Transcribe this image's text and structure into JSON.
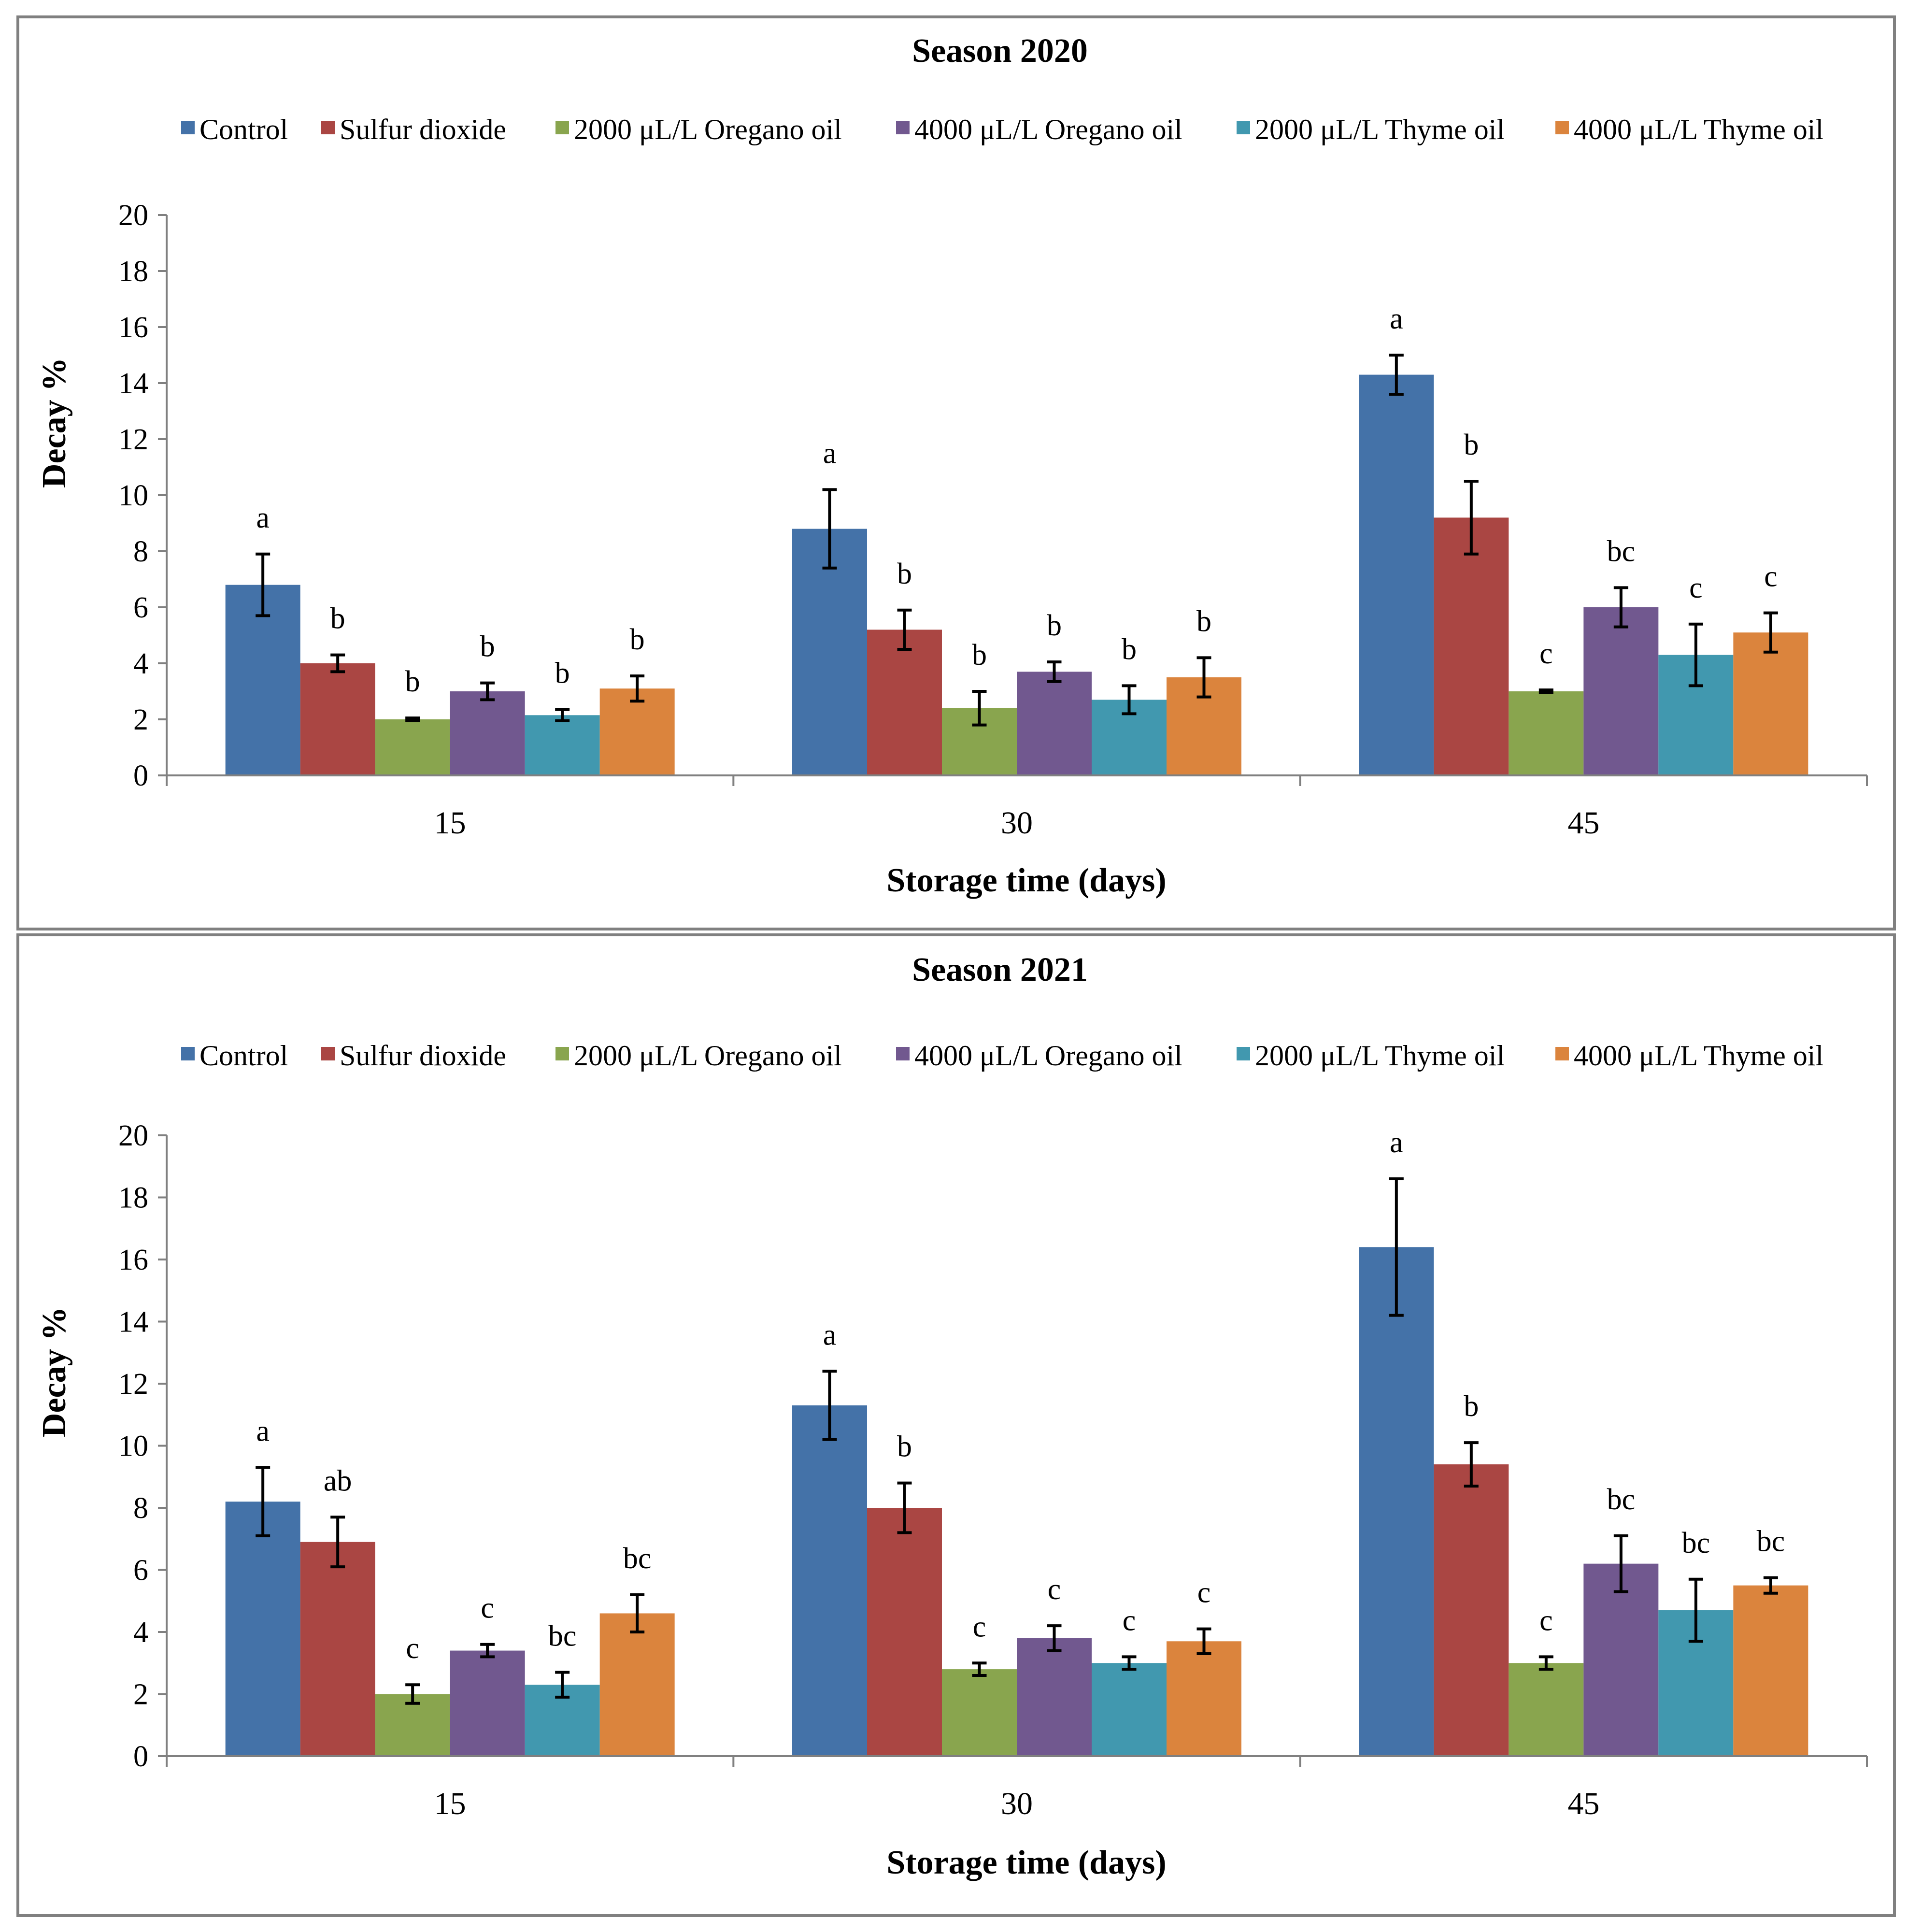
{
  "chart_data": [
    {
      "type": "bar",
      "title": "Season 2020",
      "xlabel": "Storage time (days)",
      "ylabel": "Decay %",
      "ylim": [
        0,
        20
      ],
      "yticks": [
        0,
        2,
        4,
        6,
        8,
        10,
        12,
        14,
        16,
        18,
        20
      ],
      "categories": [
        "15",
        "30",
        "45"
      ],
      "legend_position": "top",
      "series": [
        {
          "name": "Control",
          "color": "#4472A8",
          "values": [
            6.8,
            8.8,
            14.3
          ],
          "errors": [
            1.1,
            1.4,
            0.7
          ],
          "letters": [
            "a",
            "a",
            "a"
          ]
        },
        {
          "name": "Sulfur dioxide",
          "color": "#AA4643",
          "values": [
            4.0,
            5.2,
            9.2
          ],
          "errors": [
            0.3,
            0.7,
            1.3
          ],
          "letters": [
            "b",
            "b",
            "b"
          ]
        },
        {
          "name": "2000 μL/L Oregano oil",
          "color": "#89A54E",
          "values": [
            2.0,
            2.4,
            3.0
          ],
          "errors": [
            0.05,
            0.6,
            0.05
          ],
          "letters": [
            "b",
            "b",
            "c"
          ]
        },
        {
          "name": "4000 μL/L Oregano oil",
          "color": "#71588F",
          "values": [
            3.0,
            3.7,
            6.0
          ],
          "errors": [
            0.3,
            0.35,
            0.7
          ],
          "letters": [
            "b",
            "b",
            "bc"
          ]
        },
        {
          "name": "2000 μL/L Thyme oil",
          "color": "#4198AF",
          "values": [
            2.15,
            2.7,
            4.3
          ],
          "errors": [
            0.2,
            0.5,
            1.1
          ],
          "letters": [
            "b",
            "b",
            "c"
          ]
        },
        {
          "name": "4000 μL/L Thyme oil",
          "color": "#DB843D",
          "values": [
            3.1,
            3.5,
            5.1
          ],
          "errors": [
            0.45,
            0.7,
            0.7
          ],
          "letters": [
            "b",
            "b",
            "c"
          ]
        }
      ]
    },
    {
      "type": "bar",
      "title": "Season 2021",
      "xlabel": "Storage time (days)",
      "ylabel": "Decay %",
      "ylim": [
        0,
        20
      ],
      "yticks": [
        0,
        2,
        4,
        6,
        8,
        10,
        12,
        14,
        16,
        18,
        20
      ],
      "categories": [
        "15",
        "30",
        "45"
      ],
      "legend_position": "top",
      "series": [
        {
          "name": "Control",
          "color": "#4472A8",
          "values": [
            8.2,
            11.3,
            16.4
          ],
          "errors": [
            1.1,
            1.1,
            2.2
          ],
          "letters": [
            "a",
            "a",
            "a"
          ]
        },
        {
          "name": "Sulfur dioxide",
          "color": "#AA4643",
          "values": [
            6.9,
            8.0,
            9.4
          ],
          "errors": [
            0.8,
            0.8,
            0.7
          ],
          "letters": [
            "ab",
            "b",
            "b"
          ]
        },
        {
          "name": "2000 μL/L Oregano oil",
          "color": "#89A54E",
          "values": [
            2.0,
            2.8,
            3.0
          ],
          "errors": [
            0.3,
            0.2,
            0.2
          ],
          "letters": [
            "c",
            "c",
            "c"
          ]
        },
        {
          "name": "4000 μL/L Oregano oil",
          "color": "#71588F",
          "values": [
            3.4,
            3.8,
            6.2
          ],
          "errors": [
            0.2,
            0.4,
            0.9
          ],
          "letters": [
            "c",
            "c",
            "bc"
          ]
        },
        {
          "name": "2000 μL/L Thyme oil",
          "color": "#4198AF",
          "values": [
            2.3,
            3.0,
            4.7
          ],
          "errors": [
            0.4,
            0.2,
            1.0
          ],
          "letters": [
            "bc",
            "c",
            "bc"
          ]
        },
        {
          "name": "4000 μL/L Thyme oil",
          "color": "#DB843D",
          "values": [
            4.6,
            3.7,
            5.5
          ],
          "errors": [
            0.6,
            0.4,
            0.25
          ],
          "letters": [
            "bc",
            "c",
            "bc"
          ]
        }
      ]
    }
  ]
}
